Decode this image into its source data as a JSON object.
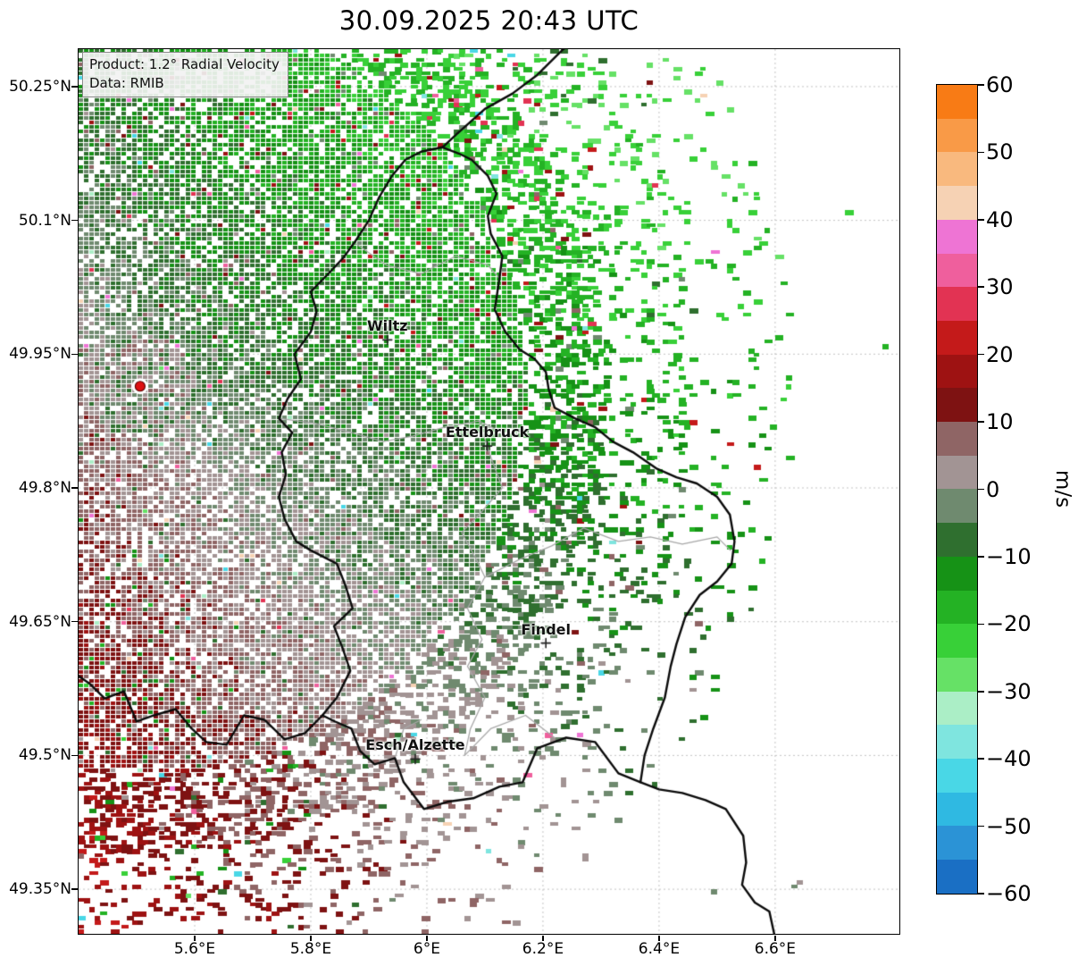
{
  "figure": {
    "title": "30.09.2025 20:43 UTC",
    "background": "#ffffff"
  },
  "product_box": {
    "line1": "Product: 1.2° Radial Velocity",
    "line2": "Data: RMIB"
  },
  "axes": {
    "lat_ticks": [
      {
        "label": "50.25°N",
        "lat": 50.25
      },
      {
        "label": "50.1°N",
        "lat": 50.1
      },
      {
        "label": "49.95°N",
        "lat": 49.95
      },
      {
        "label": "49.8°N",
        "lat": 49.8
      },
      {
        "label": "49.65°N",
        "lat": 49.65
      },
      {
        "label": "49.5°N",
        "lat": 49.5
      },
      {
        "label": "49.35°N",
        "lat": 49.35
      }
    ],
    "lon_ticks": [
      {
        "label": "5.6°E",
        "lon": 5.6
      },
      {
        "label": "5.8°E",
        "lon": 5.8
      },
      {
        "label": "6°E",
        "lon": 6.0
      },
      {
        "label": "6.2°E",
        "lon": 6.2
      },
      {
        "label": "6.4°E",
        "lon": 6.4
      },
      {
        "label": "6.6°E",
        "lon": 6.6
      }
    ]
  },
  "map": {
    "extent": {
      "lon_min": 5.4,
      "lon_max": 6.814,
      "lat_min": 49.3,
      "lat_max": 50.292
    },
    "radar": {
      "lon": 5.506,
      "lat": 49.914,
      "dot_color": "#dd1111",
      "edge_color": "#5a0000"
    },
    "cities": [
      {
        "name": "Wiltz",
        "lon": 5.932,
        "lat": 49.966
      },
      {
        "name": "Ettelbruck",
        "lon": 6.104,
        "lat": 49.847
      },
      {
        "name": "Findel",
        "lon": 6.205,
        "lat": 49.626
      },
      {
        "name": "Esch/Alzette",
        "lon": 5.98,
        "lat": 49.496
      }
    ],
    "borders_national": [
      [
        [
          6.027,
          50.182
        ],
        [
          6.05,
          50.196
        ],
        [
          6.1,
          50.225
        ],
        [
          6.147,
          50.242
        ],
        [
          6.19,
          50.263
        ],
        [
          6.235,
          50.292
        ],
        [
          6.26,
          50.305
        ]
      ],
      [
        [
          6.027,
          50.182
        ],
        [
          6.055,
          50.175
        ],
        [
          6.077,
          50.168
        ],
        [
          6.105,
          50.15
        ],
        [
          6.12,
          50.13
        ],
        [
          6.105,
          50.105
        ],
        [
          6.11,
          50.085
        ],
        [
          6.13,
          50.06
        ],
        [
          6.125,
          50.035
        ],
        [
          6.117,
          50.0
        ],
        [
          6.135,
          49.975
        ],
        [
          6.16,
          49.955
        ],
        [
          6.185,
          49.945
        ],
        [
          6.205,
          49.93
        ],
        [
          6.21,
          49.91
        ],
        [
          6.22,
          49.89
        ],
        [
          6.255,
          49.878
        ],
        [
          6.29,
          49.868
        ],
        [
          6.32,
          49.852
        ],
        [
          6.355,
          49.84
        ],
        [
          6.395,
          49.822
        ],
        [
          6.43,
          49.812
        ],
        [
          6.465,
          49.805
        ],
        [
          6.5,
          49.79
        ],
        [
          6.522,
          49.77
        ],
        [
          6.53,
          49.74
        ],
        [
          6.525,
          49.715
        ],
        [
          6.5,
          49.695
        ],
        [
          6.47,
          49.68
        ],
        [
          6.445,
          49.655
        ],
        [
          6.43,
          49.625
        ],
        [
          6.42,
          49.6
        ],
        [
          6.41,
          49.565
        ],
        [
          6.39,
          49.53
        ],
        [
          6.375,
          49.5
        ],
        [
          6.368,
          49.47
        ],
        [
          6.33,
          49.48
        ],
        [
          6.29,
          49.515
        ],
        [
          6.24,
          49.52
        ],
        [
          6.19,
          49.508
        ],
        [
          6.165,
          49.47
        ],
        [
          6.125,
          49.465
        ],
        [
          6.08,
          49.452
        ],
        [
          6.035,
          49.448
        ],
        [
          5.995,
          49.44
        ],
        [
          5.96,
          49.47
        ],
        [
          5.945,
          49.497
        ],
        [
          5.91,
          49.49
        ],
        [
          5.885,
          49.505
        ],
        [
          5.87,
          49.53
        ],
        [
          5.842,
          49.538
        ],
        [
          5.82,
          49.545
        ],
        [
          5.845,
          49.565
        ],
        [
          5.868,
          49.595
        ],
        [
          5.855,
          49.62
        ],
        [
          5.84,
          49.645
        ],
        [
          5.872,
          49.665
        ],
        [
          5.86,
          49.69
        ],
        [
          5.845,
          49.715
        ],
        [
          5.8,
          49.73
        ],
        [
          5.775,
          49.74
        ],
        [
          5.755,
          49.765
        ],
        [
          5.745,
          49.79
        ],
        [
          5.757,
          49.815
        ],
        [
          5.75,
          49.84
        ],
        [
          5.768,
          49.862
        ],
        [
          5.745,
          49.878
        ],
        [
          5.76,
          49.9
        ],
        [
          5.783,
          49.922
        ],
        [
          5.772,
          49.95
        ],
        [
          5.8,
          49.975
        ],
        [
          5.81,
          49.998
        ],
        [
          5.8,
          50.02
        ],
        [
          5.83,
          50.04
        ],
        [
          5.856,
          50.058
        ],
        [
          5.875,
          50.075
        ],
        [
          5.9,
          50.1
        ],
        [
          5.917,
          50.125
        ],
        [
          5.94,
          50.15
        ],
        [
          5.963,
          50.168
        ],
        [
          5.99,
          50.177
        ],
        [
          6.027,
          50.182
        ]
      ],
      [
        [
          6.368,
          49.47
        ],
        [
          6.4,
          49.462
        ],
        [
          6.44,
          49.458
        ],
        [
          6.48,
          49.45
        ],
        [
          6.515,
          49.44
        ],
        [
          6.545,
          49.41
        ],
        [
          6.55,
          49.38
        ],
        [
          6.543,
          49.355
        ],
        [
          6.565,
          49.335
        ],
        [
          6.59,
          49.325
        ],
        [
          6.6,
          49.295
        ]
      ],
      [
        [
          5.82,
          49.545
        ],
        [
          5.79,
          49.525
        ],
        [
          5.755,
          49.518
        ],
        [
          5.72,
          49.54
        ],
        [
          5.685,
          49.545
        ],
        [
          5.655,
          49.512
        ],
        [
          5.62,
          49.515
        ],
        [
          5.595,
          49.53
        ],
        [
          5.567,
          49.552
        ],
        [
          5.53,
          49.545
        ],
        [
          5.5,
          49.538
        ],
        [
          5.478,
          49.572
        ],
        [
          5.445,
          49.564
        ],
        [
          5.42,
          49.58
        ],
        [
          5.398,
          49.59
        ]
      ]
    ],
    "borders_internal": [
      [
        [
          5.745,
          49.878
        ],
        [
          5.81,
          49.872
        ],
        [
          5.87,
          49.862
        ],
        [
          5.925,
          49.852
        ],
        [
          5.975,
          49.858
        ],
        [
          6.03,
          49.868
        ],
        [
          6.09,
          49.875
        ],
        [
          6.135,
          49.86
        ]
      ],
      [
        [
          6.09,
          49.875
        ],
        [
          6.11,
          49.835
        ],
        [
          6.13,
          49.8
        ],
        [
          6.09,
          49.77
        ],
        [
          6.06,
          49.75
        ],
        [
          6.085,
          49.72
        ],
        [
          6.1,
          49.7
        ],
        [
          6.07,
          49.665
        ],
        [
          6.095,
          49.63
        ],
        [
          6.07,
          49.6
        ],
        [
          6.1,
          49.565
        ],
        [
          6.075,
          49.53
        ],
        [
          6.065,
          49.5
        ]
      ],
      [
        [
          6.1,
          49.7
        ],
        [
          6.16,
          49.72
        ],
        [
          6.215,
          49.735
        ],
        [
          6.27,
          49.755
        ],
        [
          6.33,
          49.74
        ],
        [
          6.385,
          49.745
        ],
        [
          6.44,
          49.737
        ],
        [
          6.5,
          49.745
        ],
        [
          6.523,
          49.73
        ]
      ],
      [
        [
          6.065,
          49.5
        ],
        [
          6.11,
          49.53
        ],
        [
          6.17,
          49.545
        ],
        [
          6.22,
          49.52
        ]
      ],
      [
        [
          5.875,
          50.075
        ],
        [
          5.93,
          50.05
        ],
        [
          5.99,
          50.04
        ],
        [
          6.05,
          50.06
        ],
        [
          6.105,
          50.05
        ],
        [
          6.125,
          50.035
        ]
      ],
      [
        [
          5.945,
          49.497
        ],
        [
          5.96,
          49.53
        ],
        [
          5.99,
          49.54
        ]
      ]
    ]
  },
  "colorbar": {
    "unit": "m/s",
    "vmin": -60,
    "vmax": 60,
    "ticks": [
      {
        "v": 60,
        "label": "60"
      },
      {
        "v": 50,
        "label": "50"
      },
      {
        "v": 40,
        "label": "40"
      },
      {
        "v": 30,
        "label": "30"
      },
      {
        "v": 20,
        "label": "20"
      },
      {
        "v": 10,
        "label": "10"
      },
      {
        "v": 0,
        "label": "0"
      },
      {
        "v": -10,
        "label": "−10"
      },
      {
        "v": -20,
        "label": "−20"
      },
      {
        "v": -30,
        "label": "−30"
      },
      {
        "v": -40,
        "label": "−40"
      },
      {
        "v": -50,
        "label": "−50"
      },
      {
        "v": -60,
        "label": "−60"
      }
    ],
    "palette": [
      {
        "from": -60,
        "to": -55,
        "color": "#1a6fc4"
      },
      {
        "from": -55,
        "to": -50,
        "color": "#2b93d6"
      },
      {
        "from": -50,
        "to": -45,
        "color": "#2fb9e2"
      },
      {
        "from": -45,
        "to": -40,
        "color": "#49d7e6"
      },
      {
        "from": -40,
        "to": -35,
        "color": "#7fe5df"
      },
      {
        "from": -35,
        "to": -30,
        "color": "#abeec6"
      },
      {
        "from": -30,
        "to": -25,
        "color": "#66e166"
      },
      {
        "from": -25,
        "to": -20,
        "color": "#38d038"
      },
      {
        "from": -20,
        "to": -15,
        "color": "#24b224"
      },
      {
        "from": -15,
        "to": -10,
        "color": "#169216"
      },
      {
        "from": -10,
        "to": -5,
        "color": "#2f6f2f"
      },
      {
        "from": -5,
        "to": 0,
        "color": "#6f8a6f"
      },
      {
        "from": 0,
        "to": 5,
        "color": "#a29494"
      },
      {
        "from": 5,
        "to": 10,
        "color": "#8f6565"
      },
      {
        "from": 10,
        "to": 15,
        "color": "#7e1212"
      },
      {
        "from": 15,
        "to": 20,
        "color": "#9e1212"
      },
      {
        "from": 20,
        "to": 25,
        "color": "#c41a1a"
      },
      {
        "from": 25,
        "to": 30,
        "color": "#e23353"
      },
      {
        "from": 30,
        "to": 35,
        "color": "#ef5f9d"
      },
      {
        "from": 35,
        "to": 40,
        "color": "#ee74d4"
      },
      {
        "from": 40,
        "to": 45,
        "color": "#f6d2b4"
      },
      {
        "from": 45,
        "to": 50,
        "color": "#f9b97e"
      },
      {
        "from": 50,
        "to": 55,
        "color": "#f99a47"
      },
      {
        "from": 55,
        "to": 60,
        "color": "#f87b15"
      }
    ]
  }
}
